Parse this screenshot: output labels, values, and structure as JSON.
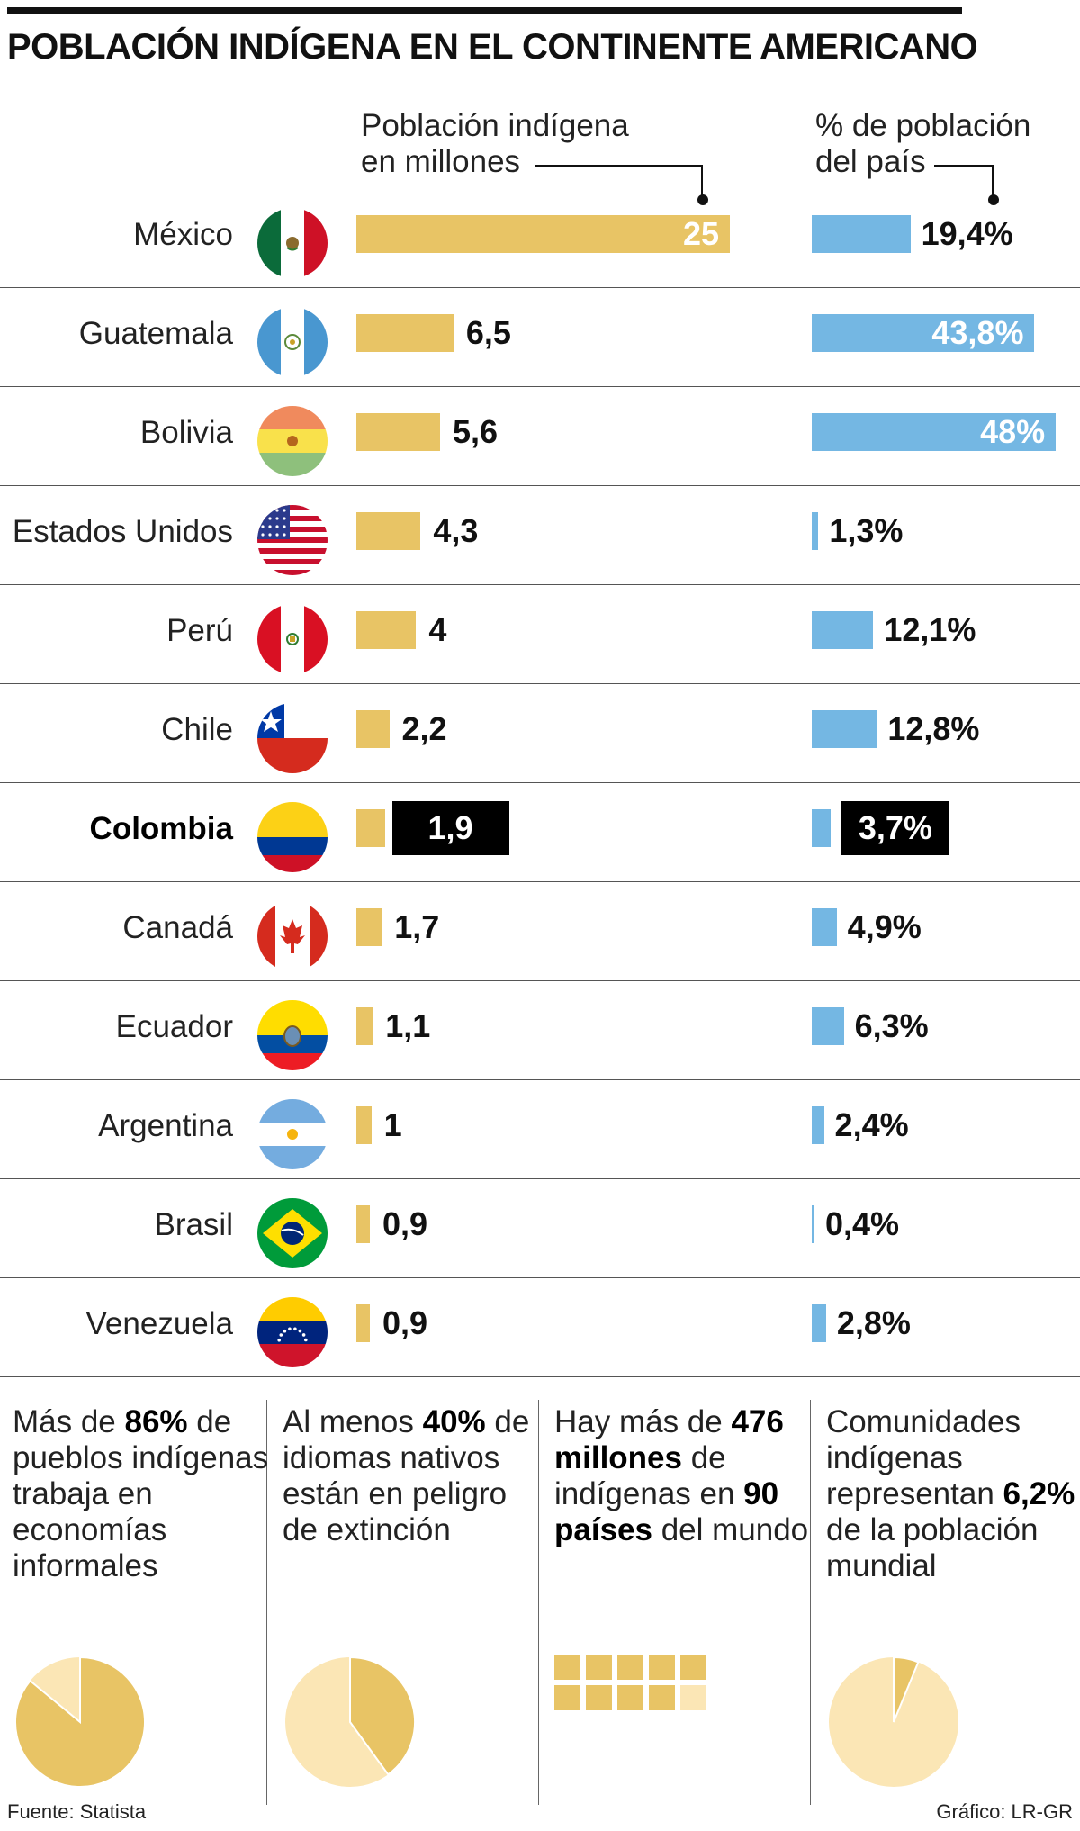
{
  "title": "POBLACIÓN INDÍGENA EN EL CONTINENTE AMERICANO",
  "colors": {
    "pop_bar": "#e8c465",
    "pct_bar": "#74b7e3",
    "highlight": "#000000",
    "pie_light": "#fbe6b5",
    "pie_dark": "#e8c465"
  },
  "chart_data": {
    "type": "bar",
    "title": "POBLACIÓN INDÍGENA EN EL CONTINENTE AMERICANO",
    "series": [
      {
        "name": "Población indígena en millones",
        "values": [
          25,
          6.5,
          5.6,
          4.3,
          4,
          2.2,
          1.9,
          1.7,
          1.1,
          1,
          0.9,
          0.9
        ],
        "labels": [
          "25",
          "6,5",
          "5,6",
          "4,3",
          "4",
          "2,2",
          "1,9",
          "1,7",
          "1,1",
          "1",
          "0,9",
          "0,9"
        ]
      },
      {
        "name": "% de población del país",
        "values": [
          19.4,
          43.8,
          48,
          1.3,
          12.1,
          12.8,
          3.7,
          4.9,
          6.3,
          2.4,
          0.4,
          2.8
        ],
        "labels": [
          "19,4%",
          "43,8%",
          "48%",
          "1,3%",
          "12,1%",
          "12,8%",
          "3,7%",
          "4,9%",
          "6,3%",
          "2,4%",
          "0,4%",
          "2,8%"
        ]
      }
    ],
    "categories": [
      "México",
      "Guatemala",
      "Bolivia",
      "Estados Unidos",
      "Perú",
      "Chile",
      "Colombia",
      "Canadá",
      "Ecuador",
      "Argentina",
      "Brasil",
      "Venezuela"
    ],
    "highlight": "Colombia",
    "col_headers": {
      "pop": [
        "Población indígena",
        "en millones"
      ],
      "pct": [
        "% de población",
        "del país"
      ]
    }
  },
  "rows": [
    {
      "country": "México",
      "flag": "mexico-flag-icon"
    },
    {
      "country": "Guatemala",
      "flag": "guatemala-flag-icon"
    },
    {
      "country": "Bolivia",
      "flag": "bolivia-flag-icon"
    },
    {
      "country": "Estados Unidos",
      "flag": "usa-flag-icon"
    },
    {
      "country": "Perú",
      "flag": "peru-flag-icon"
    },
    {
      "country": "Chile",
      "flag": "chile-flag-icon"
    },
    {
      "country": "Colombia",
      "flag": "colombia-flag-icon"
    },
    {
      "country": "Canadá",
      "flag": "canada-flag-icon"
    },
    {
      "country": "Ecuador",
      "flag": "ecuador-flag-icon"
    },
    {
      "country": "Argentina",
      "flag": "argentina-flag-icon"
    },
    {
      "country": "Brasil",
      "flag": "brazil-flag-icon"
    },
    {
      "country": "Venezuela",
      "flag": "venezuela-flag-icon"
    }
  ],
  "facts": [
    {
      "parts": [
        [
          "Más de ",
          false
        ],
        [
          "86%",
          true
        ],
        [
          " de pueblos indígenas trabaja en economías informales",
          false
        ]
      ],
      "visual": "pie",
      "percent": 86
    },
    {
      "parts": [
        [
          "Al menos ",
          false
        ],
        [
          "40%",
          true
        ],
        [
          " de idiomas nativos están en peligro de extinción",
          false
        ]
      ],
      "visual": "pie",
      "percent": 40
    },
    {
      "parts": [
        [
          "Hay más de ",
          false
        ],
        [
          "476 millones",
          true
        ],
        [
          " de indígenas en ",
          false
        ],
        [
          "90 países",
          true
        ],
        [
          " del mundo",
          false
        ]
      ],
      "visual": "grid",
      "filled": 9,
      "total": 10
    },
    {
      "parts": [
        [
          "Comunidades indígenas representan ",
          false
        ],
        [
          "6,2%",
          true
        ],
        [
          " de la población mundial",
          false
        ]
      ],
      "visual": "pie",
      "percent": 6.2
    }
  ],
  "footer": {
    "source": "Fuente: Statista",
    "credit": "Gráfico: LR-GR"
  }
}
